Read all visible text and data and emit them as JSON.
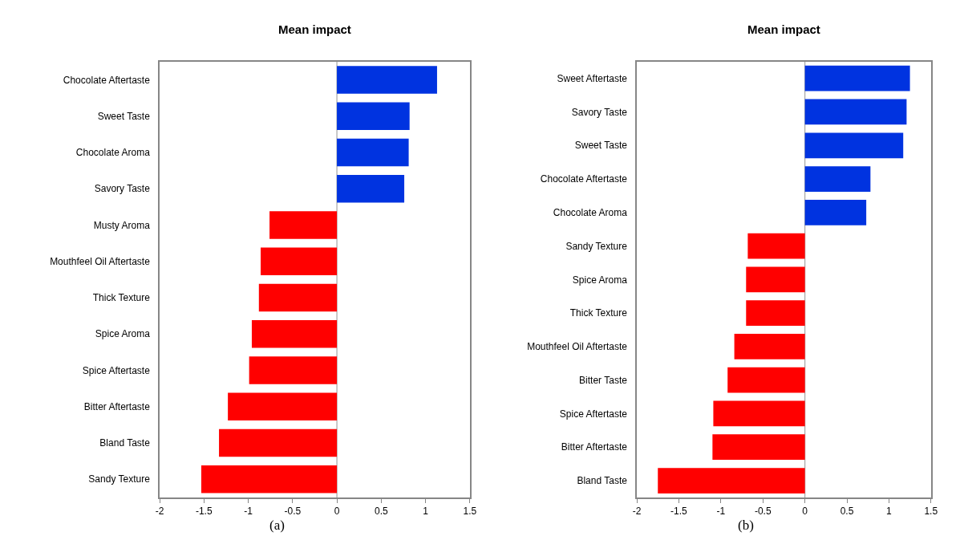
{
  "chart_data": [
    {
      "type": "bar",
      "orientation": "horizontal",
      "title": "Mean impact",
      "categories": [
        "Chocolate Aftertaste",
        "Sweet Taste",
        "Chocolate Aroma",
        "Savory Taste",
        "Musty Aroma",
        "Mouthfeel Oil Aftertaste",
        "Thick Texture",
        "Spice Aroma",
        "Spice Aftertaste",
        "Bitter Aftertaste",
        "Bland Taste",
        "Sandy Texture"
      ],
      "values": [
        1.13,
        0.82,
        0.81,
        0.76,
        -0.76,
        -0.86,
        -0.88,
        -0.96,
        -0.99,
        -1.23,
        -1.33,
        -1.53
      ],
      "colors": [
        "#0033e0",
        "#0033e0",
        "#0033e0",
        "#0033e0",
        "#ff0000",
        "#ff0000",
        "#ff0000",
        "#ff0000",
        "#ff0000",
        "#ff0000",
        "#ff0000",
        "#ff0000"
      ],
      "xlim": [
        -2,
        1.5
      ],
      "xticks": [
        -2,
        -1.5,
        -1,
        -0.5,
        0,
        0.5,
        1,
        1.5
      ],
      "grid": false,
      "ref_lines": [
        {
          "axis": "x",
          "value": 0,
          "color": "#a6a6a6"
        }
      ],
      "annotations": [
        "(a)"
      ]
    },
    {
      "type": "bar",
      "orientation": "horizontal",
      "title": "Mean impact",
      "categories": [
        "Sweet Aftertaste",
        "Savory Taste",
        "Sweet Taste",
        "Chocolate Aftertaste",
        "Chocolate Aroma",
        "Sandy Texture",
        "Spice Aroma",
        "Thick Texture",
        "Mouthfeel Oil Aftertaste",
        "Bitter Taste",
        "Spice Aftertaste",
        "Bitter Aftertaste",
        "Bland Taste"
      ],
      "values": [
        1.25,
        1.21,
        1.17,
        0.78,
        0.73,
        -0.68,
        -0.7,
        -0.7,
        -0.84,
        -0.92,
        -1.09,
        -1.1,
        -1.75
      ],
      "colors": [
        "#0033e0",
        "#0033e0",
        "#0033e0",
        "#0033e0",
        "#0033e0",
        "#ff0000",
        "#ff0000",
        "#ff0000",
        "#ff0000",
        "#ff0000",
        "#ff0000",
        "#ff0000",
        "#ff0000"
      ],
      "xlim": [
        -2,
        1.5
      ],
      "xticks": [
        -2,
        -1.5,
        -1,
        -0.5,
        0,
        0.5,
        1,
        1.5
      ],
      "grid": false,
      "ref_lines": [
        {
          "axis": "x",
          "value": 0,
          "color": "#a6a6a6"
        }
      ],
      "annotations": [
        "(b)"
      ]
    }
  ]
}
